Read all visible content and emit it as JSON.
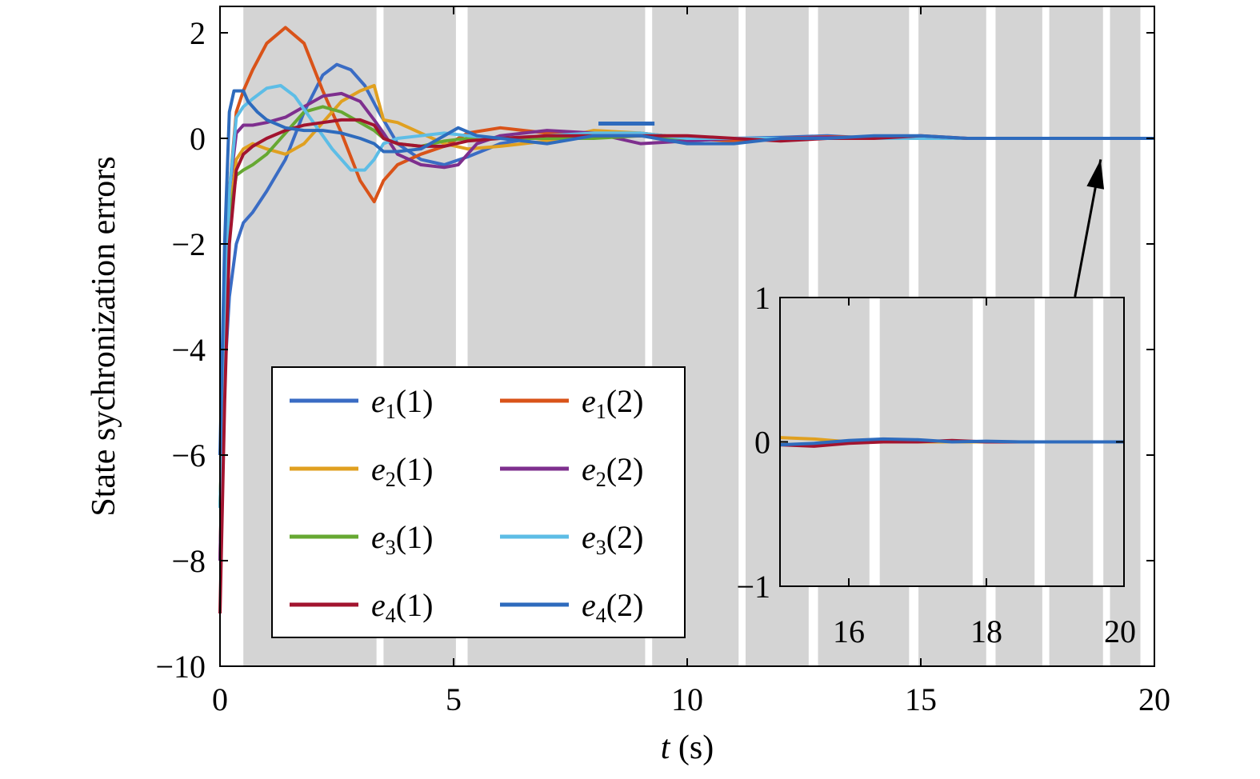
{
  "chart_data": {
    "type": "line",
    "xlabel": "t (s)",
    "ylabel": "State sychronization errors",
    "xlim": [
      0,
      20
    ],
    "ylim": [
      -10,
      2.5
    ],
    "x_ticks": [
      "0",
      "5",
      "10",
      "15",
      "20"
    ],
    "y_ticks": [
      "−10",
      "−8",
      "−6",
      "−4",
      "−2",
      "0",
      "2"
    ],
    "grid": false,
    "legend_placement": "lower-left",
    "background_intervals": [
      [
        0.5,
        3.35
      ],
      [
        3.5,
        5.05
      ],
      [
        5.3,
        9.1
      ],
      [
        9.25,
        11.1
      ],
      [
        11.25,
        12.6
      ],
      [
        12.8,
        14.75
      ],
      [
        14.95,
        16.4
      ],
      [
        16.6,
        17.6
      ],
      [
        17.75,
        18.9
      ],
      [
        19.05,
        19.7
      ]
    ],
    "background_color": "#d4d4d4",
    "series": [
      {
        "name": "e1(1)",
        "color": "#3a6cc4",
        "x": [
          0,
          0.1,
          0.2,
          0.35,
          0.5,
          0.7,
          1.0,
          1.4,
          1.8,
          2.2,
          2.5,
          2.8,
          3.1,
          3.4,
          3.8,
          4.3,
          4.8,
          5.3,
          6,
          7,
          8,
          9,
          10,
          11,
          12,
          13,
          14,
          15,
          16,
          17,
          18,
          19,
          20
        ],
        "y": [
          -6,
          -4.5,
          -3,
          -2,
          -1.6,
          -1.4,
          -1,
          -0.4,
          0.5,
          1.2,
          1.4,
          1.3,
          1.0,
          0.5,
          -0.1,
          -0.4,
          -0.5,
          -0.35,
          -0.1,
          0.05,
          0.1,
          0.05,
          -0.05,
          0,
          0.02,
          0.05,
          0,
          0,
          0,
          0,
          0,
          0,
          0
        ]
      },
      {
        "name": "e1(2)",
        "color": "#d95319",
        "x": [
          0,
          0.1,
          0.2,
          0.35,
          0.5,
          0.7,
          1.0,
          1.4,
          1.8,
          2.2,
          2.6,
          3.0,
          3.3,
          3.5,
          3.8,
          4.3,
          4.8,
          5.3,
          6,
          7,
          8,
          9,
          10,
          11,
          12,
          13,
          14,
          15,
          16,
          17,
          18,
          19,
          20
        ],
        "y": [
          -8,
          -4,
          -1,
          0.5,
          0.9,
          1.3,
          1.8,
          2.1,
          1.8,
          0.9,
          0.1,
          -0.8,
          -1.2,
          -0.8,
          -0.5,
          -0.3,
          -0.15,
          0.1,
          0.2,
          0.1,
          0.05,
          0.1,
          0,
          -0.05,
          0,
          0.03,
          0.02,
          0,
          0,
          0,
          0,
          0,
          0
        ]
      },
      {
        "name": "e2(1)",
        "color": "#e0a020",
        "x": [
          0,
          0.1,
          0.2,
          0.35,
          0.5,
          0.7,
          1.0,
          1.4,
          1.8,
          2.2,
          2.6,
          3.0,
          3.3,
          3.5,
          3.8,
          4.3,
          4.8,
          5.3,
          6,
          7,
          8,
          9,
          10,
          11,
          12,
          13,
          14,
          15,
          16,
          17,
          18,
          19,
          20
        ],
        "y": [
          -7,
          -4,
          -1.5,
          -0.4,
          -0.2,
          -0.1,
          -0.2,
          -0.3,
          -0.1,
          0.3,
          0.7,
          0.9,
          1.0,
          0.35,
          0.3,
          0.1,
          -0.1,
          -0.2,
          -0.15,
          -0.05,
          0.15,
          0.1,
          0,
          0,
          0,
          0,
          0,
          0,
          0,
          0,
          0,
          0,
          0
        ]
      },
      {
        "name": "e2(2)",
        "color": "#7e2f8e",
        "x": [
          0,
          0.1,
          0.2,
          0.35,
          0.5,
          0.7,
          1.0,
          1.4,
          1.8,
          2.2,
          2.6,
          3.0,
          3.3,
          3.5,
          3.8,
          4.3,
          4.8,
          5.1,
          5.5,
          6,
          7,
          8,
          9,
          10,
          11,
          12,
          13,
          14,
          15,
          16,
          17,
          18,
          19,
          20
        ],
        "y": [
          -8,
          -4,
          -1.0,
          0.1,
          0.25,
          0.25,
          0.3,
          0.4,
          0.6,
          0.8,
          0.85,
          0.7,
          0.35,
          0.1,
          -0.3,
          -0.5,
          -0.55,
          -0.5,
          -0.1,
          0.05,
          0.15,
          0.1,
          -0.1,
          -0.05,
          0,
          0,
          0.02,
          0.02,
          0,
          0,
          0,
          0,
          0,
          0
        ]
      },
      {
        "name": "e3(1)",
        "color": "#66a832",
        "x": [
          0,
          0.1,
          0.2,
          0.35,
          0.5,
          0.7,
          1.0,
          1.4,
          1.8,
          2.2,
          2.6,
          3.0,
          3.3,
          3.5,
          3.8,
          4.3,
          4.8,
          5.3,
          6,
          7,
          8,
          9,
          10,
          11,
          12,
          13,
          14,
          15,
          16,
          17,
          18,
          19,
          20
        ],
        "y": [
          -7,
          -4,
          -1.5,
          -0.7,
          -0.6,
          -0.5,
          -0.3,
          0.1,
          0.5,
          0.6,
          0.5,
          0.3,
          0.15,
          0.0,
          -0.1,
          -0.15,
          -0.05,
          0,
          0,
          0,
          0,
          0.05,
          0,
          0,
          0,
          0,
          0,
          0,
          0,
          0,
          0,
          0,
          0
        ]
      },
      {
        "name": "e3(2)",
        "color": "#5dbde6",
        "x": [
          0,
          0.1,
          0.2,
          0.35,
          0.5,
          0.7,
          1.0,
          1.3,
          1.6,
          2.0,
          2.4,
          2.8,
          3.1,
          3.3,
          3.5,
          3.8,
          4.3,
          4.8,
          5.3,
          6,
          7,
          8,
          9,
          10,
          11,
          12,
          13,
          14,
          15,
          16,
          17,
          18,
          19,
          20
        ],
        "y": [
          -7,
          -4,
          -1.0,
          0.4,
          0.6,
          0.75,
          0.95,
          1.0,
          0.8,
          0.3,
          -0.2,
          -0.6,
          -0.6,
          -0.4,
          -0.1,
          0,
          0.05,
          0.1,
          0.05,
          0,
          0.05,
          0.1,
          0.1,
          0,
          0,
          0,
          0,
          0,
          0,
          0,
          0,
          0,
          0,
          0
        ]
      },
      {
        "name": "e4(1)",
        "color": "#a2142f",
        "x": [
          0,
          0.1,
          0.2,
          0.35,
          0.5,
          0.7,
          1.0,
          1.4,
          1.8,
          2.2,
          2.6,
          3.0,
          3.3,
          3.5,
          3.8,
          4.3,
          4.8,
          5.3,
          6,
          7,
          8,
          9,
          10,
          11,
          12,
          13,
          14,
          15,
          16,
          17,
          18,
          19,
          20
        ],
        "y": [
          -9,
          -5,
          -2,
          -0.6,
          -0.3,
          -0.15,
          0.0,
          0.15,
          0.25,
          0.3,
          0.35,
          0.35,
          0.25,
          0.0,
          -0.1,
          -0.15,
          -0.15,
          -0.05,
          0.0,
          0.05,
          0.05,
          0.05,
          0.05,
          0,
          -0.05,
          0,
          0,
          0.05,
          0,
          0,
          0,
          0,
          0
        ]
      },
      {
        "name": "e4(2)",
        "color": "#2e6bbd",
        "x": [
          0,
          0.1,
          0.2,
          0.3,
          0.4,
          0.5,
          0.6,
          0.8,
          1.0,
          1.4,
          1.8,
          2.2,
          2.6,
          3.0,
          3.3,
          3.5,
          3.8,
          4.3,
          4.8,
          5.1,
          5.5,
          6,
          7,
          8,
          9,
          10,
          11,
          12,
          13,
          14,
          15,
          16,
          17,
          18,
          19,
          20
        ],
        "y": [
          -6,
          -2,
          0.5,
          0.9,
          0.9,
          0.9,
          0.7,
          0.5,
          0.35,
          0.2,
          0.15,
          0.15,
          0.1,
          0.0,
          -0.1,
          -0.25,
          -0.25,
          -0.2,
          0.05,
          0.2,
          0.05,
          0.0,
          -0.1,
          0.05,
          0.05,
          -0.1,
          -0.1,
          0,
          0,
          0.05,
          0.05,
          0,
          0,
          0,
          0,
          0
        ]
      }
    ],
    "annotation_marker": {
      "x": [
        8.1,
        9.3
      ],
      "y": 0.28,
      "color": "#2e6bbd"
    },
    "arrow": {
      "from": [
        18.3,
        -3.0
      ],
      "to": [
        18.85,
        -0.4
      ]
    },
    "inset": {
      "xlim": [
        15,
        20
      ],
      "ylim": [
        -1,
        1
      ],
      "x_ticks": [
        "16",
        "18",
        "20"
      ],
      "y_ticks": [
        "−1",
        "0",
        "1"
      ],
      "background_intervals": [
        [
          15,
          16.3
        ],
        [
          16.45,
          17.8
        ],
        [
          17.95,
          18.7
        ],
        [
          18.85,
          19.55
        ],
        [
          19.7,
          20
        ]
      ],
      "lines": [
        {
          "color": "#e0a020",
          "x": [
            15,
            15.5,
            16,
            17,
            18,
            19,
            20
          ],
          "y": [
            0.03,
            0.02,
            0.0,
            0.0,
            0.0,
            0.0,
            0.0
          ]
        },
        {
          "color": "#a2142f",
          "x": [
            15,
            15.5,
            16,
            16.5,
            17,
            17.5,
            18,
            19,
            20
          ],
          "y": [
            -0.02,
            -0.03,
            -0.01,
            0.0,
            0.0,
            0.01,
            0.0,
            0.0,
            0.0
          ]
        },
        {
          "color": "#2e6bbd",
          "x": [
            15,
            15.5,
            16,
            16.5,
            17,
            17.5,
            18,
            18.5,
            19,
            20
          ],
          "y": [
            -0.02,
            -0.01,
            0.01,
            0.02,
            0.015,
            0.0,
            0.005,
            0.0,
            0.0,
            0.0
          ]
        }
      ]
    }
  }
}
